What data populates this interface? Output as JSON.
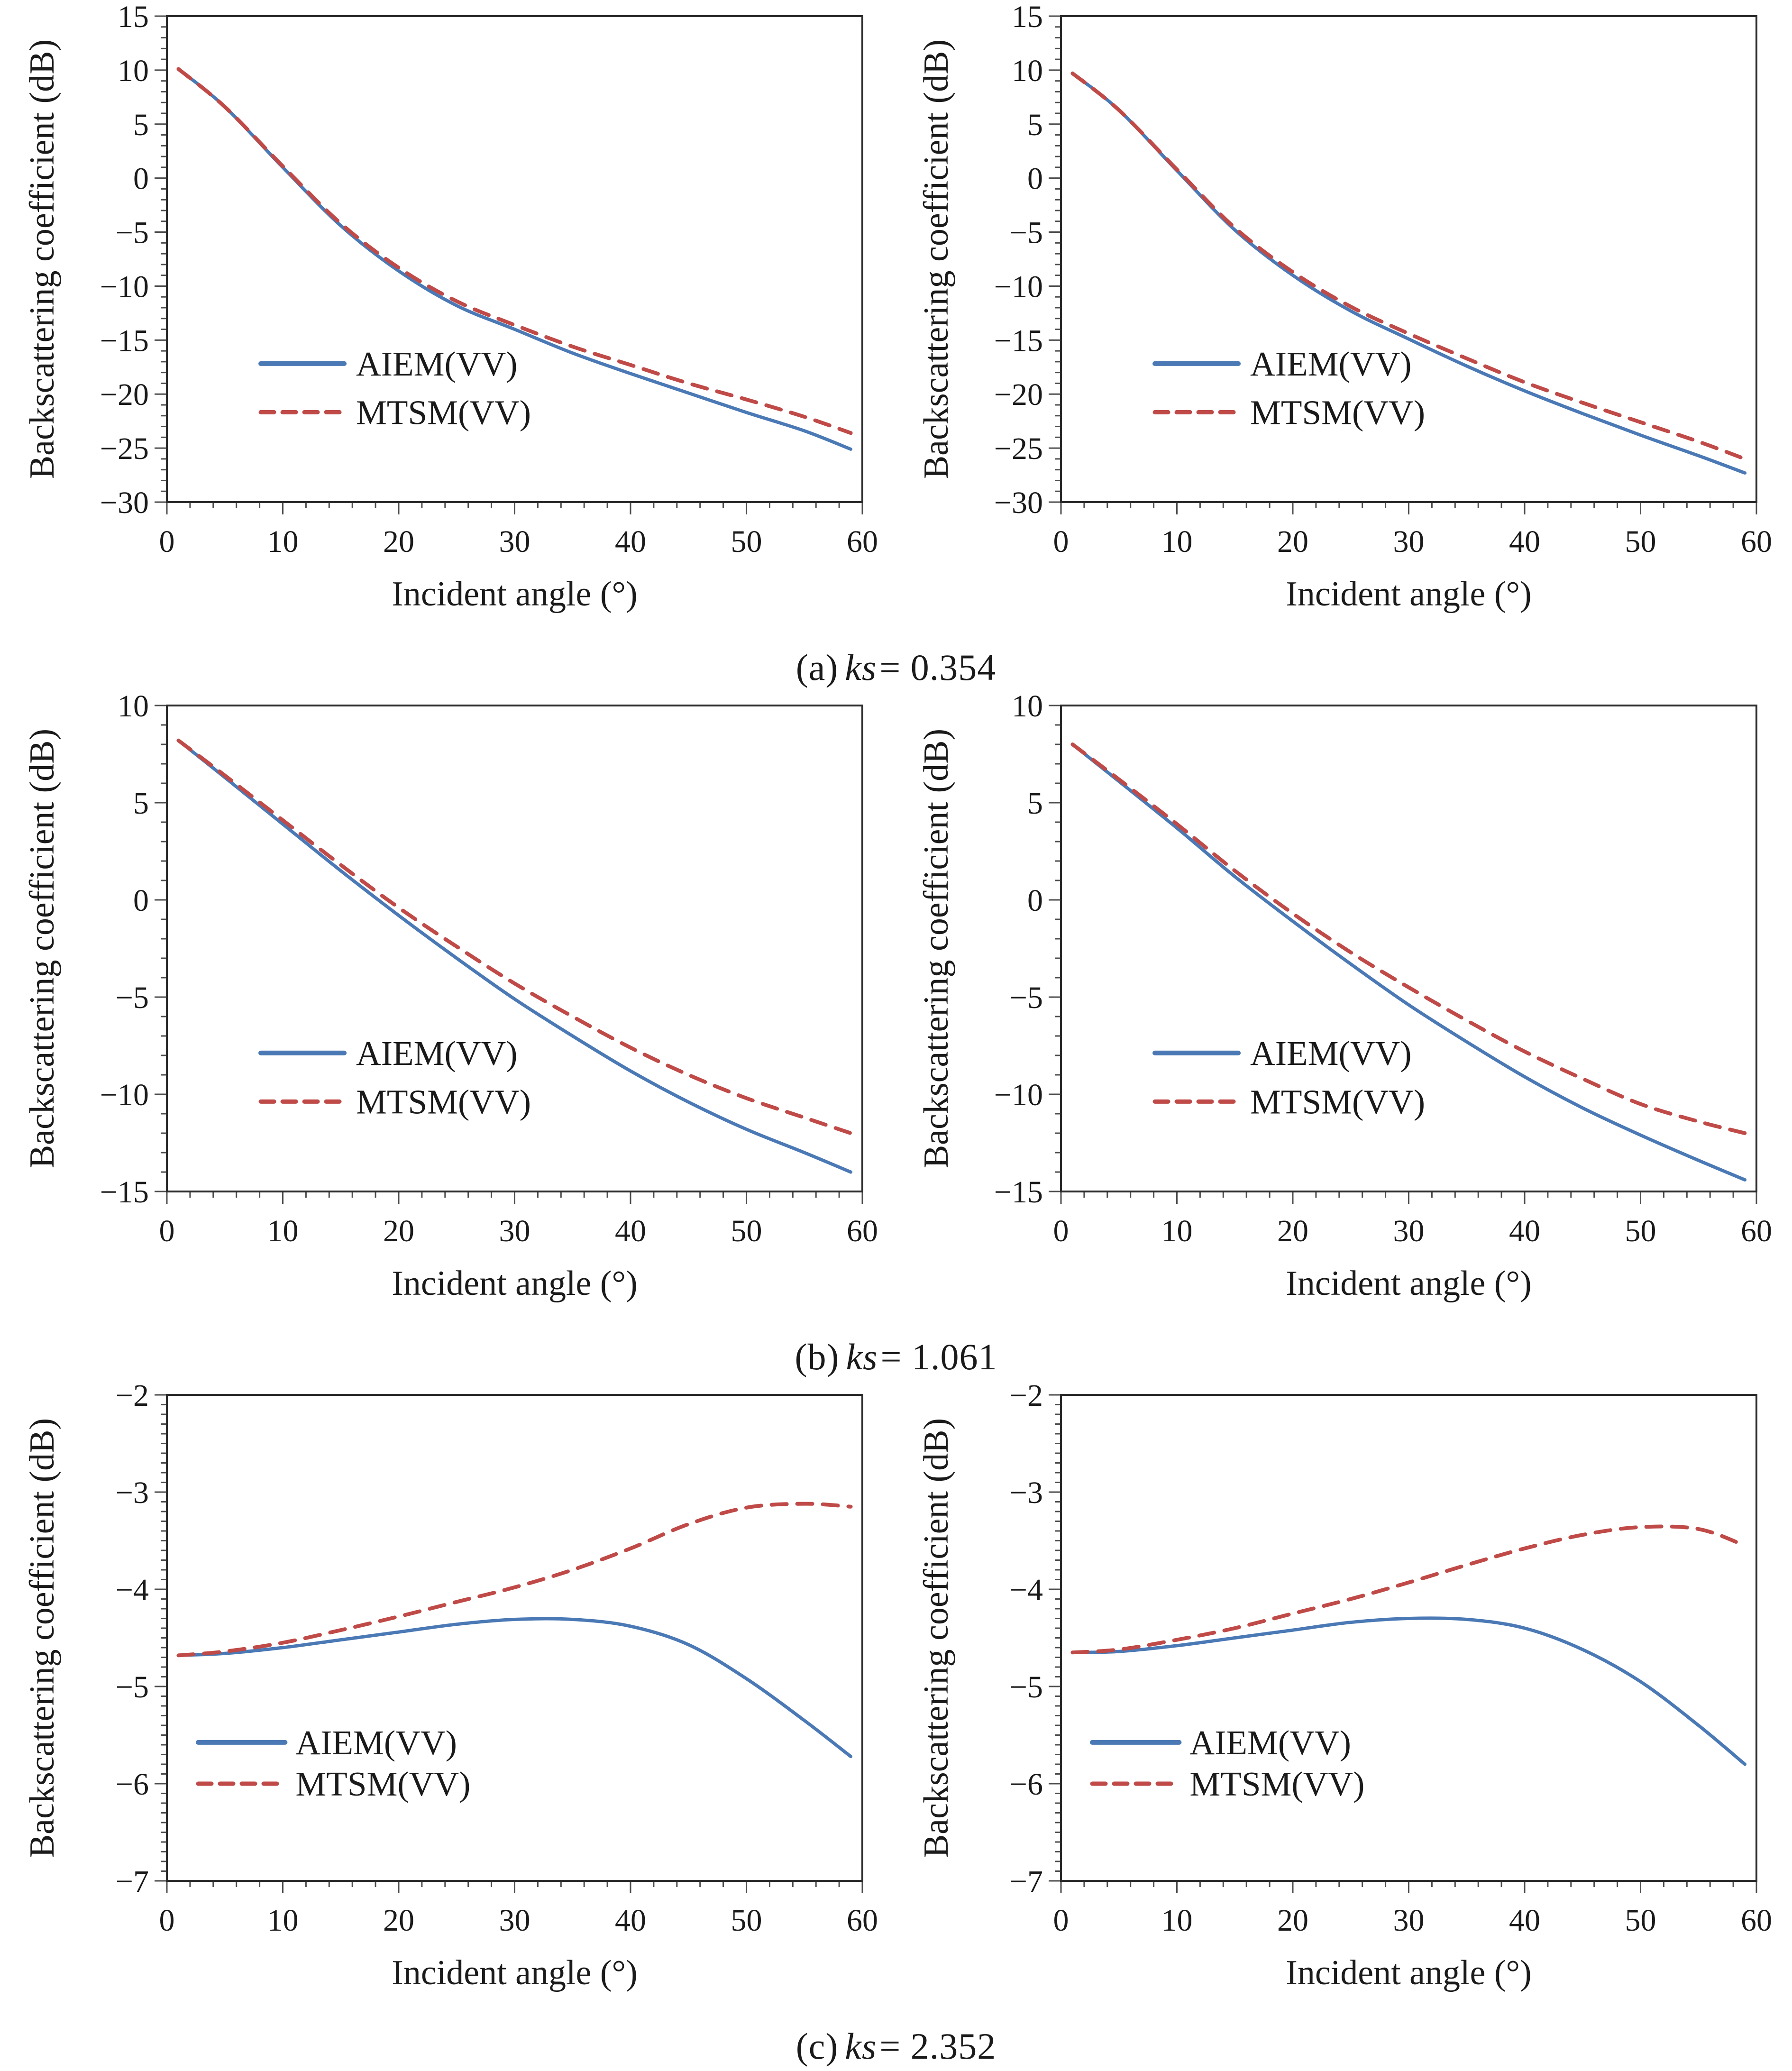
{
  "page": {
    "background": "#ffffff"
  },
  "style": {
    "curve_blue": "#4a79b5",
    "curve_red": "#bf4a47",
    "axis_color": "#2b2b2b",
    "tick_color": "#4d4d4d"
  },
  "legend": {
    "aiem_label": "AIEM(VV)",
    "mtsm_label": "MTSM(VV)"
  },
  "captions": [
    {
      "prefix": "(a)",
      "symbol": "ks",
      "rest": "= 0.354"
    },
    {
      "prefix": "(b)",
      "symbol": "ks",
      "rest": "= 1.061"
    },
    {
      "prefix": "(c)",
      "symbol": "ks",
      "rest": "= 2.352"
    }
  ],
  "chart_data": [
    {
      "type": "line",
      "position": "a-left",
      "xlabel": "Incident angle (°)",
      "ylabel": "Backscattering coefficient (dB)",
      "xlim": [
        0,
        60
      ],
      "xtick_major": 10,
      "xtick_minor": 2,
      "ylim": [
        -30,
        15
      ],
      "ytick_major": 5,
      "ytick_minor": 1,
      "grid": false,
      "legend_position": "lower-left-inside",
      "x": [
        1,
        5,
        10,
        15,
        20,
        25,
        30,
        35,
        40,
        45,
        50,
        55,
        59
      ],
      "series": [
        {
          "name": "AIEM(VV)",
          "style": "solid",
          "color": "#4a79b5",
          "values": [
            10.1,
            6.6,
            1.0,
            -4.4,
            -8.6,
            -11.8,
            -14.0,
            -16.2,
            -18.1,
            -19.9,
            -21.7,
            -23.4,
            -25.1
          ]
        },
        {
          "name": "MTSM(VV)",
          "style": "dashed",
          "color": "#bf4a47",
          "values": [
            10.1,
            6.6,
            1.1,
            -4.2,
            -8.3,
            -11.4,
            -13.6,
            -15.6,
            -17.3,
            -19.0,
            -20.5,
            -22.1,
            -23.6
          ]
        }
      ]
    },
    {
      "type": "line",
      "position": "a-right",
      "xlabel": "Incident angle (°)",
      "ylabel": "Backscattering coefficient (dB)",
      "xlim": [
        0,
        60
      ],
      "xtick_major": 10,
      "xtick_minor": 2,
      "ylim": [
        -30,
        15
      ],
      "ytick_major": 5,
      "ytick_minor": 1,
      "grid": false,
      "legend_position": "lower-left-inside",
      "x": [
        1,
        5,
        10,
        15,
        20,
        25,
        30,
        35,
        40,
        45,
        50,
        55,
        59
      ],
      "series": [
        {
          "name": "AIEM(VV)",
          "style": "solid",
          "color": "#4a79b5",
          "values": [
            9.7,
            6.3,
            0.7,
            -4.8,
            -9.0,
            -12.3,
            -14.9,
            -17.4,
            -19.7,
            -21.8,
            -23.8,
            -25.7,
            -27.3
          ]
        },
        {
          "name": "MTSM(VV)",
          "style": "dashed",
          "color": "#bf4a47",
          "values": [
            9.7,
            6.3,
            0.8,
            -4.6,
            -8.7,
            -11.9,
            -14.4,
            -16.7,
            -18.9,
            -20.8,
            -22.6,
            -24.4,
            -26.0
          ]
        }
      ]
    },
    {
      "type": "line",
      "position": "b-left",
      "xlabel": "Incident angle (°)",
      "ylabel": "Backscattering coefficient (dB)",
      "xlim": [
        0,
        60
      ],
      "xtick_major": 10,
      "xtick_minor": 2,
      "ylim": [
        -15,
        10
      ],
      "ytick_major": 5,
      "ytick_minor": 1,
      "grid": false,
      "legend_position": "lower-left-inside",
      "x": [
        1,
        5,
        10,
        15,
        20,
        25,
        30,
        35,
        40,
        45,
        50,
        55,
        59
      ],
      "series": [
        {
          "name": "AIEM(VV)",
          "style": "solid",
          "color": "#4a79b5",
          "values": [
            8.2,
            6.3,
            3.9,
            1.5,
            -0.8,
            -3.0,
            -5.1,
            -7.0,
            -8.8,
            -10.4,
            -11.8,
            -13.0,
            -14.0
          ]
        },
        {
          "name": "MTSM(VV)",
          "style": "dashed",
          "color": "#bf4a47",
          "values": [
            8.2,
            6.4,
            4.1,
            1.8,
            -0.4,
            -2.4,
            -4.3,
            -6.0,
            -7.6,
            -9.0,
            -10.2,
            -11.2,
            -12.0
          ]
        }
      ]
    },
    {
      "type": "line",
      "position": "b-right",
      "xlabel": "Incident angle (°)",
      "ylabel": "Backscattering coefficient (dB)",
      "xlim": [
        0,
        60
      ],
      "xtick_major": 10,
      "xtick_minor": 2,
      "ylim": [
        -15,
        10
      ],
      "ytick_major": 5,
      "ytick_minor": 1,
      "grid": false,
      "legend_position": "lower-left-inside",
      "x": [
        1,
        5,
        10,
        15,
        20,
        25,
        30,
        35,
        40,
        45,
        50,
        55,
        59
      ],
      "series": [
        {
          "name": "AIEM(VV)",
          "style": "solid",
          "color": "#4a79b5",
          "values": [
            8.0,
            6.1,
            3.7,
            1.2,
            -1.1,
            -3.3,
            -5.4,
            -7.3,
            -9.1,
            -10.7,
            -12.1,
            -13.4,
            -14.4
          ]
        },
        {
          "name": "MTSM(VV)",
          "style": "dashed",
          "color": "#bf4a47",
          "values": [
            8.0,
            6.2,
            3.9,
            1.5,
            -0.7,
            -2.7,
            -4.5,
            -6.2,
            -7.8,
            -9.2,
            -10.5,
            -11.4,
            -12.0
          ]
        }
      ]
    },
    {
      "type": "line",
      "position": "c-left",
      "xlabel": "Incident angle (°)",
      "ylabel": "Backscattering coefficient (dB)",
      "xlim": [
        0,
        60
      ],
      "xtick_major": 10,
      "xtick_minor": 2,
      "ylim": [
        -7,
        -2
      ],
      "ytick_major": 1,
      "ytick_minor": 0.1,
      "grid": false,
      "legend_position": "lower-left-inside",
      "x": [
        1,
        5,
        10,
        15,
        20,
        25,
        30,
        35,
        40,
        45,
        50,
        55,
        59
      ],
      "series": [
        {
          "name": "AIEM(VV)",
          "style": "solid",
          "color": "#4a79b5",
          "values": [
            -4.68,
            -4.66,
            -4.6,
            -4.52,
            -4.44,
            -4.36,
            -4.31,
            -4.31,
            -4.38,
            -4.57,
            -4.92,
            -5.35,
            -5.72
          ]
        },
        {
          "name": "MTSM(VV)",
          "style": "dashed",
          "color": "#bf4a47",
          "values": [
            -4.68,
            -4.64,
            -4.55,
            -4.42,
            -4.28,
            -4.13,
            -3.98,
            -3.8,
            -3.58,
            -3.33,
            -3.16,
            -3.12,
            -3.15
          ]
        }
      ]
    },
    {
      "type": "line",
      "position": "c-right",
      "xlabel": "Incident angle (°)",
      "ylabel": "Backscattering coefficient (dB)",
      "xlim": [
        0,
        60
      ],
      "xtick_major": 10,
      "xtick_minor": 2,
      "ylim": [
        -7,
        -2
      ],
      "ytick_major": 1,
      "ytick_minor": 0.1,
      "grid": false,
      "legend_position": "lower-left-inside",
      "x": [
        1,
        5,
        10,
        15,
        20,
        25,
        30,
        35,
        40,
        45,
        50,
        55,
        59
      ],
      "series": [
        {
          "name": "AIEM(VV)",
          "style": "solid",
          "color": "#4a79b5",
          "values": [
            -4.65,
            -4.64,
            -4.58,
            -4.5,
            -4.42,
            -4.34,
            -4.3,
            -4.31,
            -4.4,
            -4.62,
            -4.95,
            -5.4,
            -5.8
          ]
        },
        {
          "name": "MTSM(VV)",
          "style": "dashed",
          "color": "#bf4a47",
          "values": [
            -4.65,
            -4.62,
            -4.52,
            -4.4,
            -4.25,
            -4.1,
            -3.93,
            -3.75,
            -3.58,
            -3.44,
            -3.36,
            -3.38,
            -3.55
          ]
        }
      ]
    }
  ]
}
